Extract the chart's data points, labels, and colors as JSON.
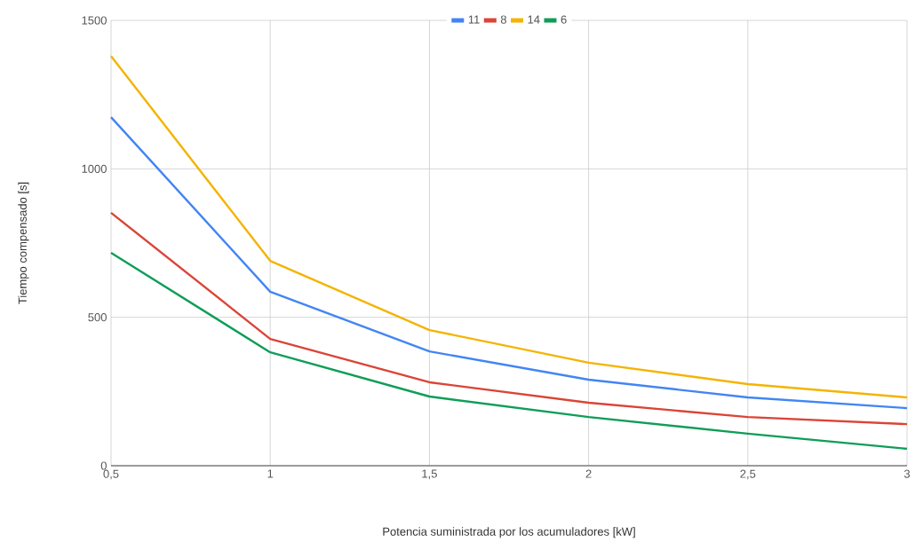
{
  "chart_data": {
    "type": "line",
    "xlabel": "Potencia suministrada por los acumuladores [kW]",
    "ylabel": "Tiempo compensado [s]",
    "x": [
      0.5,
      1,
      1.5,
      2,
      2.5,
      3
    ],
    "series": [
      {
        "name": "11",
        "color": "#4285f4",
        "values": [
          1174,
          586,
          385,
          290,
          230,
          194
        ]
      },
      {
        "name": "8",
        "color": "#db4437",
        "values": [
          852,
          427,
          281,
          212,
          164,
          140
        ]
      },
      {
        "name": "14",
        "color": "#f4b400",
        "values": [
          1380,
          690,
          457,
          347,
          275,
          230
        ]
      },
      {
        "name": "6",
        "color": "#0f9d58",
        "values": [
          717,
          382,
          233,
          164,
          108,
          57
        ]
      }
    ],
    "xlim": [
      0.5,
      3
    ],
    "ylim": [
      0,
      1500
    ],
    "xticks": [
      {
        "value": 0.5,
        "label": "0,5"
      },
      1,
      {
        "value": 1.5,
        "label": "1,5"
      },
      2,
      {
        "value": 2.5,
        "label": "2,5"
      },
      3
    ],
    "yticks": [
      0,
      500,
      1000,
      1500
    ],
    "grid": true,
    "legend": "top",
    "marker": "none",
    "line_style": "solid"
  }
}
